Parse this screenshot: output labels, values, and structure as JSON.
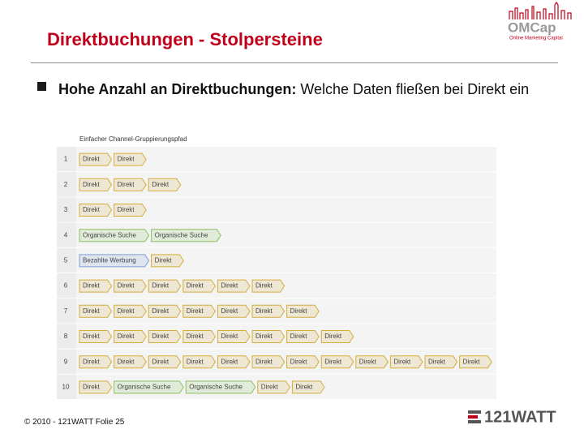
{
  "header": {
    "title": "Direktbuchungen - Stolpersteine"
  },
  "bullet": {
    "bold": "Hohe Anzahl an Direktbuchungen:",
    "text": " Welche Daten fließen bei Direkt ein"
  },
  "table": {
    "header": "Einfacher Channel-Gruppierungspfad",
    "rows": [
      {
        "number": "1",
        "steps": [
          {
            "label": "Direkt",
            "color": "#d4ad3c"
          },
          {
            "label": "Direkt",
            "color": "#d4ad3c"
          }
        ]
      },
      {
        "number": "2",
        "steps": [
          {
            "label": "Direkt",
            "color": "#d4ad3c"
          },
          {
            "label": "Direkt",
            "color": "#d4ad3c"
          },
          {
            "label": "Direkt",
            "color": "#d4ad3c"
          }
        ]
      },
      {
        "number": "3",
        "steps": [
          {
            "label": "Direkt",
            "color": "#d4ad3c"
          },
          {
            "label": "Direkt",
            "color": "#d4ad3c"
          }
        ]
      },
      {
        "number": "4",
        "steps": [
          {
            "label": "Organische Suche",
            "color": "#8cc063"
          },
          {
            "label": "Organische Suche",
            "color": "#8cc063"
          }
        ]
      },
      {
        "number": "5",
        "steps": [
          {
            "label": "Bezahlte Werbung",
            "color": "#7f9fd6"
          },
          {
            "label": "Direkt",
            "color": "#d4ad3c"
          }
        ]
      },
      {
        "number": "6",
        "steps": [
          {
            "label": "Direkt",
            "color": "#d4ad3c"
          },
          {
            "label": "Direkt",
            "color": "#d4ad3c"
          },
          {
            "label": "Direkt",
            "color": "#d4ad3c"
          },
          {
            "label": "Direkt",
            "color": "#d4ad3c"
          },
          {
            "label": "Direkt",
            "color": "#d4ad3c"
          },
          {
            "label": "Direkt",
            "color": "#d4ad3c"
          }
        ]
      },
      {
        "number": "7",
        "steps": [
          {
            "label": "Direkt",
            "color": "#d4ad3c"
          },
          {
            "label": "Direkt",
            "color": "#d4ad3c"
          },
          {
            "label": "Direkt",
            "color": "#d4ad3c"
          },
          {
            "label": "Direkt",
            "color": "#d4ad3c"
          },
          {
            "label": "Direkt",
            "color": "#d4ad3c"
          },
          {
            "label": "Direkt",
            "color": "#d4ad3c"
          },
          {
            "label": "Direkt",
            "color": "#d4ad3c"
          }
        ]
      },
      {
        "number": "8",
        "steps": [
          {
            "label": "Direkt",
            "color": "#d4ad3c"
          },
          {
            "label": "Direkt",
            "color": "#d4ad3c"
          },
          {
            "label": "Direkt",
            "color": "#d4ad3c"
          },
          {
            "label": "Direkt",
            "color": "#d4ad3c"
          },
          {
            "label": "Direkt",
            "color": "#d4ad3c"
          },
          {
            "label": "Direkt",
            "color": "#d4ad3c"
          },
          {
            "label": "Direkt",
            "color": "#d4ad3c"
          },
          {
            "label": "Direkt",
            "color": "#d4ad3c"
          }
        ]
      },
      {
        "number": "9",
        "steps": [
          {
            "label": "Direkt",
            "color": "#d4ad3c"
          },
          {
            "label": "Direkt",
            "color": "#d4ad3c"
          },
          {
            "label": "Direkt",
            "color": "#d4ad3c"
          },
          {
            "label": "Direkt",
            "color": "#d4ad3c"
          },
          {
            "label": "Direkt",
            "color": "#d4ad3c"
          },
          {
            "label": "Direkt",
            "color": "#d4ad3c"
          },
          {
            "label": "Direkt",
            "color": "#d4ad3c"
          },
          {
            "label": "Direkt",
            "color": "#d4ad3c"
          },
          {
            "label": "Direkt",
            "color": "#d4ad3c"
          },
          {
            "label": "Direkt",
            "color": "#d4ad3c"
          },
          {
            "label": "Direkt",
            "color": "#d4ad3c"
          },
          {
            "label": "Direkt",
            "color": "#d4ad3c"
          }
        ]
      },
      {
        "number": "10",
        "steps": [
          {
            "label": "Direkt",
            "color": "#d4ad3c"
          },
          {
            "label": "Organische Suche",
            "color": "#8cc063"
          },
          {
            "label": "Organische Suche",
            "color": "#8cc063"
          },
          {
            "label": "Direkt",
            "color": "#d4ad3c"
          },
          {
            "label": "Direkt",
            "color": "#d4ad3c"
          }
        ]
      }
    ]
  },
  "footer": "© 2010 - 121WATT Folie 25",
  "logos": {
    "omcap": "OMCap",
    "omcap_tagline": "Online Marketing Capital",
    "watt": "121WATT"
  }
}
